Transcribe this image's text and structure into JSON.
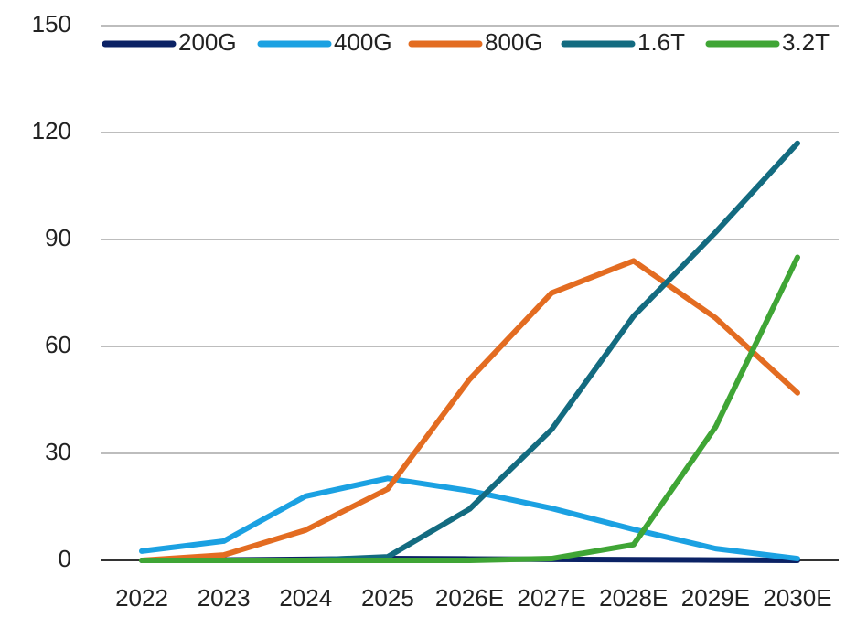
{
  "chart_data": {
    "type": "line",
    "categories": [
      "2022",
      "2023",
      "2024",
      "2025",
      "2026E",
      "2027E",
      "2028E",
      "2029E",
      "2030E"
    ],
    "series": [
      {
        "name": "200G",
        "color": "#0b2265",
        "values": [
          0,
          0.1,
          0.3,
          0.5,
          0.4,
          0.3,
          0.2,
          0.1,
          0
        ]
      },
      {
        "name": "400G",
        "color": "#1ba1e2",
        "values": [
          2.6,
          5.4,
          18,
          23,
          19.5,
          14.6,
          8.7,
          3.3,
          0.5
        ]
      },
      {
        "name": "800G",
        "color": "#e36c21",
        "values": [
          0,
          1.5,
          8.5,
          20,
          50.8,
          75,
          84,
          68,
          47
        ]
      },
      {
        "name": "1.6T",
        "color": "#136b80",
        "values": [
          0,
          0,
          0,
          1,
          14.4,
          36.7,
          68.5,
          92,
          117
        ]
      },
      {
        "name": "3.2T",
        "color": "#3fa535",
        "values": [
          0,
          0,
          0,
          0,
          0,
          0.5,
          4.4,
          37.4,
          85
        ]
      }
    ],
    "ylim": [
      0,
      150
    ],
    "yticks": [
      0,
      30,
      60,
      90,
      120,
      150
    ],
    "grid": true,
    "legend": "top"
  }
}
